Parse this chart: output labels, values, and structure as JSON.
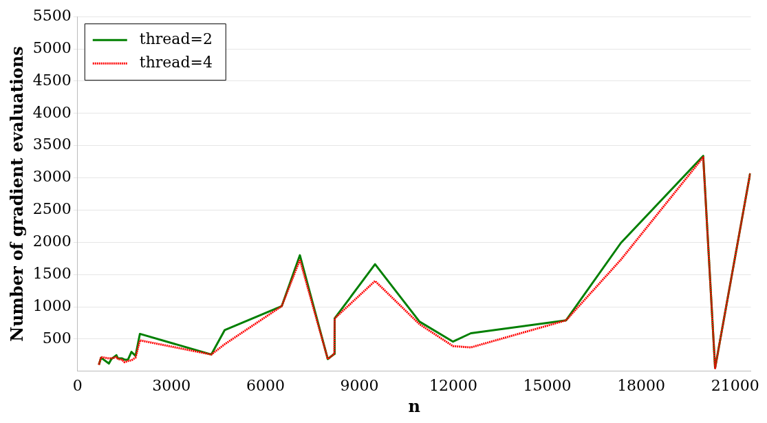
{
  "chart_data": {
    "type": "line",
    "xlabel": "n",
    "ylabel": "Number of gradient evaluations",
    "x": [
      680,
      750,
      1000,
      1080,
      1240,
      1290,
      1420,
      1500,
      1610,
      1720,
      1850,
      1990,
      4270,
      4700,
      6520,
      7100,
      7990,
      8200,
      8210,
      9500,
      10920,
      11990,
      12560,
      15600,
      17350,
      19980,
      20360,
      21480
    ],
    "series": [
      {
        "name": "thread=2",
        "color": "#007f00",
        "line_style": "solid",
        "values": [
          100,
          210,
          120,
          190,
          250,
          200,
          200,
          180,
          180,
          300,
          240,
          580,
          260,
          640,
          1010,
          1800,
          190,
          270,
          820,
          1660,
          770,
          460,
          590,
          790,
          1990,
          3340,
          50,
          3070
        ]
      },
      {
        "name": "thread=4",
        "color": "#ff0000",
        "line_style": "dotted",
        "values": [
          100,
          220,
          200,
          200,
          220,
          190,
          180,
          140,
          160,
          170,
          210,
          480,
          260,
          420,
          1010,
          1730,
          190,
          270,
          820,
          1400,
          730,
          390,
          370,
          790,
          1730,
          3320,
          50,
          3070
        ]
      }
    ],
    "xlim": [
      0,
      21500
    ],
    "xticks": [
      0,
      3000,
      6000,
      9000,
      12000,
      15000,
      18000,
      21000
    ],
    "ylim": [
      0,
      5500
    ],
    "yticks": [
      500,
      1000,
      1500,
      2000,
      2500,
      3000,
      3500,
      4000,
      4500,
      5000,
      5500
    ],
    "grid": "y",
    "legend": "top left",
    "marker": "none"
  }
}
